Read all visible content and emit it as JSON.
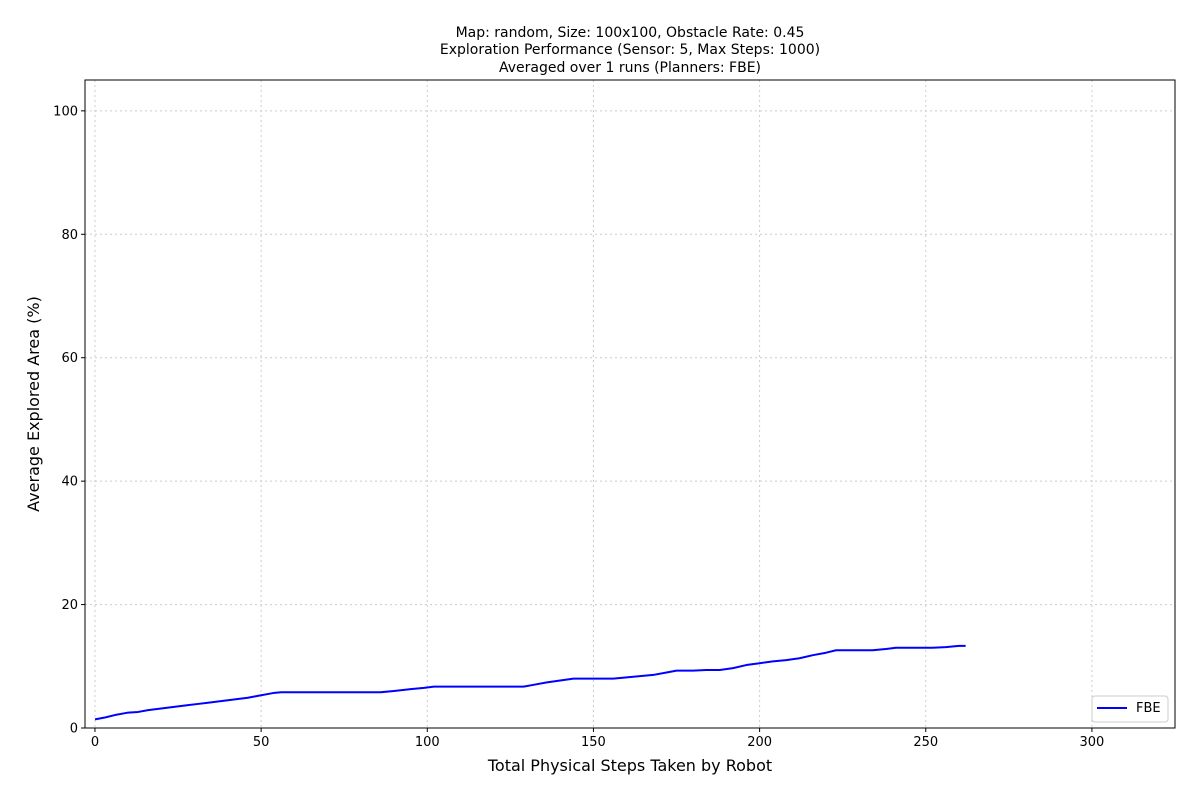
{
  "chart_data": {
    "type": "line",
    "title_lines": [
      "Map: random, Size: 100x100, Obstacle Rate: 0.45",
      "Exploration Performance (Sensor: 5, Max Steps: 1000)",
      "Averaged over 1 runs (Planners: FBE)"
    ],
    "xlabel": "Total Physical Steps Taken by Robot",
    "ylabel": "Average Explored Area (%)",
    "xlim": [
      -3,
      325
    ],
    "ylim": [
      0,
      105
    ],
    "xticks": [
      0,
      50,
      100,
      150,
      200,
      250,
      300
    ],
    "yticks": [
      0,
      20,
      40,
      60,
      80,
      100
    ],
    "grid": true,
    "legend_position": "bottom-right",
    "series": [
      {
        "name": "FBE",
        "color": "#0000ff",
        "points": [
          [
            0,
            1.4
          ],
          [
            3,
            1.7
          ],
          [
            6,
            2.1
          ],
          [
            9,
            2.4
          ],
          [
            10,
            2.5
          ],
          [
            13,
            2.6
          ],
          [
            16,
            2.9
          ],
          [
            19,
            3.1
          ],
          [
            22,
            3.3
          ],
          [
            25,
            3.5
          ],
          [
            28,
            3.7
          ],
          [
            31,
            3.9
          ],
          [
            34,
            4.1
          ],
          [
            37,
            4.3
          ],
          [
            40,
            4.5
          ],
          [
            43,
            4.7
          ],
          [
            46,
            4.9
          ],
          [
            48,
            5.1
          ],
          [
            50,
            5.3
          ],
          [
            52,
            5.5
          ],
          [
            54,
            5.7
          ],
          [
            56,
            5.8
          ],
          [
            60,
            5.8
          ],
          [
            70,
            5.8
          ],
          [
            80,
            5.8
          ],
          [
            86,
            5.8
          ],
          [
            90,
            6.0
          ],
          [
            95,
            6.3
          ],
          [
            99,
            6.5
          ],
          [
            102,
            6.7
          ],
          [
            110,
            6.7
          ],
          [
            120,
            6.7
          ],
          [
            129,
            6.7
          ],
          [
            132,
            7.0
          ],
          [
            136,
            7.4
          ],
          [
            140,
            7.7
          ],
          [
            144,
            8.0
          ],
          [
            150,
            8.0
          ],
          [
            156,
            8.0
          ],
          [
            160,
            8.2
          ],
          [
            164,
            8.4
          ],
          [
            168,
            8.6
          ],
          [
            172,
            9.0
          ],
          [
            175,
            9.3
          ],
          [
            180,
            9.3
          ],
          [
            184,
            9.4
          ],
          [
            188,
            9.4
          ],
          [
            192,
            9.7
          ],
          [
            196,
            10.2
          ],
          [
            200,
            10.5
          ],
          [
            204,
            10.8
          ],
          [
            208,
            11.0
          ],
          [
            212,
            11.3
          ],
          [
            216,
            11.8
          ],
          [
            220,
            12.2
          ],
          [
            223,
            12.6
          ],
          [
            228,
            12.6
          ],
          [
            234,
            12.6
          ],
          [
            238,
            12.8
          ],
          [
            241,
            13.0
          ],
          [
            246,
            13.0
          ],
          [
            252,
            13.0
          ],
          [
            256,
            13.1
          ],
          [
            260,
            13.3
          ],
          [
            262,
            13.3
          ]
        ]
      }
    ]
  }
}
